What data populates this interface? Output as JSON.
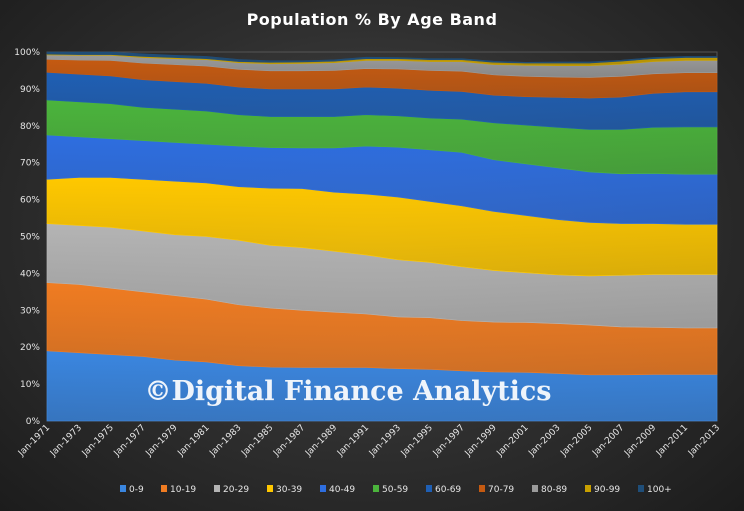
{
  "chart_data": {
    "type": "area",
    "stacked": "percent",
    "title": "Population  % By Age Band",
    "watermark": "©Digital Finance Analytics",
    "xlabel": "",
    "ylabel": "",
    "ylim": [
      0,
      100
    ],
    "y_ticks": [
      "0%",
      "10%",
      "20%",
      "30%",
      "40%",
      "50%",
      "60%",
      "70%",
      "80%",
      "90%",
      "100%"
    ],
    "x": [
      "Jan-1971",
      "Jan-1973",
      "Jan-1975",
      "Jan-1977",
      "Jan-1979",
      "Jan-1981",
      "Jan-1983",
      "Jan-1985",
      "Jan-1987",
      "Jan-1989",
      "Jan-1991",
      "Jan-1993",
      "Jan-1995",
      "Jan-1997",
      "Jan-1999",
      "Jan-2001",
      "Jan-2003",
      "Jan-2005",
      "Jan-2007",
      "Jan-2009",
      "Jan-2011",
      "Jan-2013"
    ],
    "legend_position": "bottom",
    "grid": false,
    "series": [
      {
        "name": "0-9",
        "color": "#3a86e0",
        "values": [
          19,
          18.5,
          18,
          17.5,
          16.5,
          16,
          15,
          14.6,
          14.5,
          14.5,
          14.5,
          14.2,
          14,
          13.6,
          13.3,
          13.2,
          12.9,
          12.5,
          12.5,
          12.6,
          12.6,
          12.6
        ]
      },
      {
        "name": "10-19",
        "color": "#f07c22",
        "values": [
          18.5,
          18.5,
          18,
          17.5,
          17.5,
          17,
          16.5,
          16,
          15.5,
          15,
          14.5,
          14,
          14,
          13.6,
          13.5,
          13.5,
          13.5,
          13.5,
          13,
          12.8,
          12.6,
          12.6
        ]
      },
      {
        "name": "20-29",
        "color": "#b4b4b4",
        "values": [
          16,
          16,
          16.5,
          16.5,
          16.5,
          17,
          17.5,
          17,
          17,
          16.5,
          16,
          15.5,
          15,
          14.6,
          14,
          13.5,
          13.2,
          13.3,
          14,
          14.3,
          14.5,
          14.5
        ]
      },
      {
        "name": "30-39",
        "color": "#ffc800",
        "values": [
          12,
          13,
          13.5,
          14,
          14.5,
          14.5,
          14.5,
          15.5,
          16,
          16,
          16.5,
          17,
          16.5,
          16.5,
          16,
          15.5,
          15,
          14.5,
          14,
          13.8,
          13.6,
          13.6
        ]
      },
      {
        "name": "40-49",
        "color": "#2e6ee0",
        "values": [
          12,
          11,
          10.5,
          10.5,
          10.5,
          10.5,
          11,
          11,
          11,
          12,
          13,
          13.5,
          14,
          14.5,
          14,
          14,
          14,
          13.7,
          13.5,
          13.6,
          13.6,
          13.6
        ]
      },
      {
        "name": "50-59",
        "color": "#4bb43c",
        "values": [
          9.5,
          9.5,
          9.5,
          9,
          9,
          9,
          8.5,
          8.4,
          8.5,
          8.5,
          8.5,
          8.5,
          8.6,
          9,
          10,
          10.5,
          11,
          11.5,
          12,
          12.5,
          12.8,
          12.8
        ]
      },
      {
        "name": "60-69",
        "color": "#1f5fb4",
        "values": [
          7.5,
          7.5,
          7.5,
          7.5,
          7.5,
          7.5,
          7.5,
          7.5,
          7.5,
          7.5,
          7.5,
          7.5,
          7.5,
          7.5,
          7.5,
          7.7,
          8.1,
          8.5,
          8.8,
          9.2,
          9.5,
          9.5
        ]
      },
      {
        "name": "70-79",
        "color": "#c55a11",
        "values": [
          3.5,
          3.8,
          4.2,
          4.5,
          4.6,
          4.7,
          4.8,
          4.9,
          4.9,
          5,
          5,
          5.2,
          5.4,
          5.5,
          5.5,
          5.5,
          5.5,
          5.6,
          5.6,
          5.3,
          5.2,
          5.2
        ]
      },
      {
        "name": "80-89",
        "color": "#9b9b9b",
        "values": [
          1.2,
          1.3,
          1.4,
          1.5,
          1.6,
          1.7,
          1.8,
          1.9,
          2,
          2.1,
          2.2,
          2.3,
          2.4,
          2.6,
          2.8,
          3,
          3.1,
          3.2,
          3.3,
          3.3,
          3.3,
          3.3
        ]
      },
      {
        "name": "90-99",
        "color": "#c8a000",
        "values": [
          0.2,
          0.2,
          0.2,
          0.3,
          0.3,
          0.3,
          0.3,
          0.4,
          0.4,
          0.4,
          0.5,
          0.5,
          0.5,
          0.5,
          0.6,
          0.6,
          0.7,
          0.7,
          0.8,
          0.8,
          0.8,
          0.8
        ]
      },
      {
        "name": "100+",
        "color": "#1f4e79",
        "values": [
          0.6,
          0.7,
          0.7,
          0.7,
          0.6,
          0.6,
          0.6,
          0.4,
          0.3,
          0.4,
          0.4,
          0.3,
          0.3,
          0.3,
          0.3,
          0.2,
          0.3,
          0.3,
          0.3,
          0.3,
          0.3,
          0.3
        ]
      }
    ]
  }
}
